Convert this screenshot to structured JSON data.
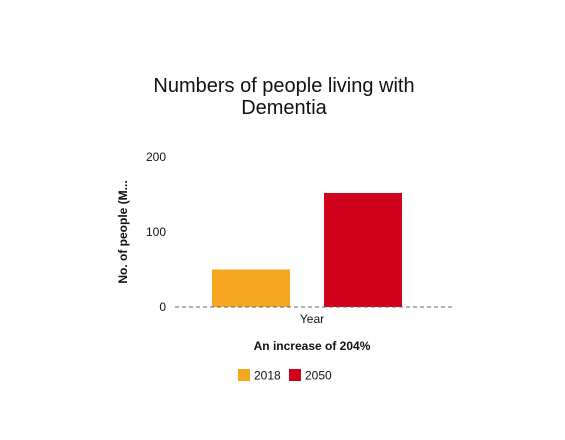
{
  "chart_data": {
    "type": "bar",
    "title_lines": [
      "Numbers of people living with",
      "Dementia"
    ],
    "ylabel": "No. of people (M...",
    "xlabel": "An increase of 204%",
    "categories": [
      "Year"
    ],
    "ylim": [
      0,
      200
    ],
    "yticks": [
      0,
      100,
      200
    ],
    "grid": false,
    "legend_position": "bottom",
    "series": [
      {
        "name": "2018",
        "values": [
          50
        ],
        "color": "#F5A623"
      },
      {
        "name": "2050",
        "values": [
          152
        ],
        "color": "#D0021B"
      }
    ]
  }
}
